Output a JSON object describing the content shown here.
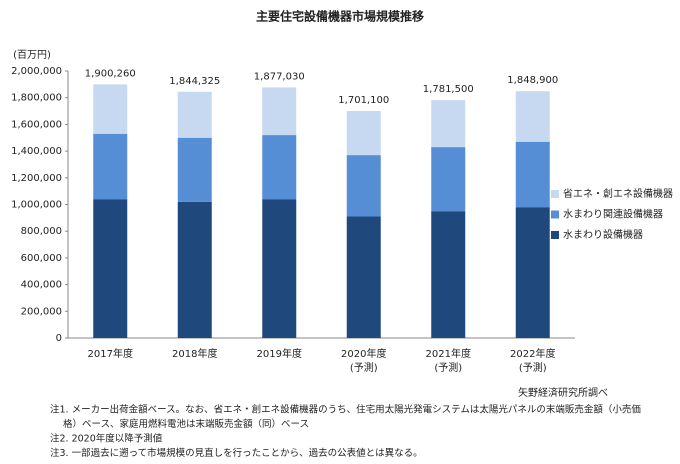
{
  "chart_data": {
    "type": "stacked-bar",
    "title": "主要住宅設備機器市場規模推移",
    "y_unit": "(百万円)",
    "categories": [
      "2017年度",
      "2018年度",
      "2019年度",
      "2020年度",
      "2021年度",
      "2022年度"
    ],
    "category_notes": [
      null,
      null,
      null,
      "(予測)",
      "(予測)",
      "(予測)"
    ],
    "series": [
      {
        "name": "水まわり設備機器",
        "color": "#1f497d",
        "values": [
          1040000,
          1020000,
          1040000,
          910000,
          950000,
          980000
        ]
      },
      {
        "name": "水まわり関連設備機器",
        "color": "#558ed5",
        "values": [
          490000,
          480000,
          480000,
          460000,
          480000,
          490000
        ]
      },
      {
        "name": "省エネ・創エネ設備機器",
        "color": "#c6d9f1",
        "values": [
          370260,
          344325,
          357030,
          331100,
          351500,
          378900
        ]
      }
    ],
    "totals": [
      1900260,
      1844325,
      1877030,
      1701100,
      1781500,
      1848900
    ],
    "total_labels": [
      "1,900,260",
      "1,844,325",
      "1,877,030",
      "1,701,100",
      "1,781,500",
      "1,848,900"
    ],
    "ylim": [
      0,
      2000000
    ],
    "yticks": [
      0,
      {
        "value": 200000,
        "label": "200,000"
      },
      {
        "value": 400000,
        "label": "400,000"
      },
      {
        "value": 600000,
        "label": "600,000"
      },
      {
        "value": 800000,
        "label": "800,000"
      },
      {
        "value": 1000000,
        "label": "1,000,000"
      },
      {
        "value": 1200000,
        "label": "1,200,000"
      },
      {
        "value": 1400000,
        "label": "1,400,000"
      },
      {
        "value": 1600000,
        "label": "1,600,000"
      },
      {
        "value": 1800000,
        "label": "1,800,000"
      },
      {
        "value": 2000000,
        "label": "2,000,000"
      }
    ],
    "legend": "right",
    "source": "矢野経済研究所調べ",
    "notes": [
      "注1. メーカー出荷金額ベース。なお、省エネ・創エネ設備機器のうち、住宅用太陽光発電システムは太陽光パネルの末端販売金額（小売価",
      "格）ベース、家庭用燃料電池は末端販売金額（同）ベース",
      "注2. 2020年度以降予測値",
      "注3. 一部過去に遡って市場規模の見直しを行ったことから、過去の公表値とは異なる。"
    ]
  }
}
